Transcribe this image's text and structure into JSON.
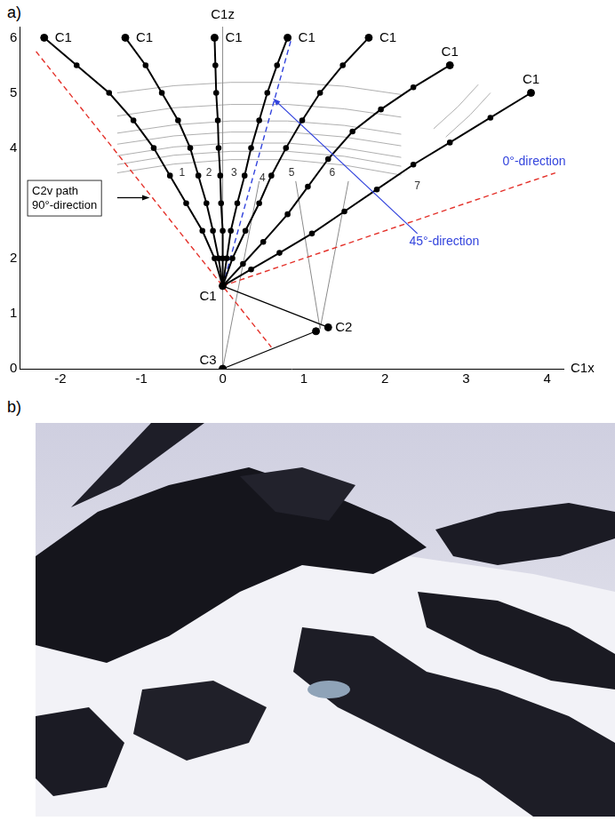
{
  "panel_labels": [
    "a)",
    "b)"
  ],
  "chart_data": {
    "type": "scatter",
    "x_label": "C1x",
    "y_label": "C1z",
    "xlim": [
      -2.5,
      4.2
    ],
    "xticks": [
      -2,
      -1,
      0,
      1,
      2,
      3,
      4
    ],
    "ylim": [
      0,
      6.2
    ],
    "yticks": [
      0,
      1,
      2,
      4,
      5,
      6
    ],
    "grid": false,
    "paths": [
      {
        "label": "1",
        "label_x": -0.5,
        "label_y": 3.55,
        "color": "#000000",
        "marker": "circle",
        "x": [
          0,
          -0.1,
          -0.25,
          -0.45,
          -0.65,
          -0.85,
          -1.1,
          -1.4,
          -1.8,
          -2.2
        ],
        "values": [
          1.5,
          2.0,
          2.5,
          3.0,
          3.5,
          4.0,
          4.5,
          5.0,
          5.5,
          6.0
        ]
      },
      {
        "label": "2",
        "label_x": -0.17,
        "label_y": 3.55,
        "color": "#000000",
        "marker": "circle",
        "x": [
          0,
          -0.05,
          -0.12,
          -0.2,
          -0.3,
          -0.4,
          -0.55,
          -0.75,
          -0.95,
          -1.2
        ],
        "values": [
          1.5,
          2.0,
          2.5,
          3.0,
          3.5,
          4.0,
          4.5,
          5.0,
          5.5,
          6.0
        ]
      },
      {
        "label": "3",
        "label_x": 0.14,
        "label_y": 3.55,
        "color": "#000000",
        "marker": "circle",
        "x": [
          0,
          0,
          0,
          -0.02,
          -0.03,
          -0.05,
          -0.06,
          -0.08,
          -0.09,
          -0.1
        ],
        "values": [
          1.5,
          2.0,
          2.5,
          3.0,
          3.5,
          4.0,
          4.5,
          5.0,
          5.5,
          6.0
        ]
      },
      {
        "label": "4",
        "label_x": 0.49,
        "label_y": 3.45,
        "color": "#000000",
        "marker": "circle",
        "x": [
          0,
          0.05,
          0.1,
          0.18,
          0.27,
          0.35,
          0.45,
          0.55,
          0.67,
          0.8
        ],
        "values": [
          1.5,
          2.0,
          2.5,
          3.0,
          3.5,
          4.0,
          4.5,
          5.0,
          5.5,
          6.0
        ]
      },
      {
        "label": "5",
        "label_x": 0.85,
        "label_y": 3.55,
        "color": "#000000",
        "marker": "circle",
        "x": [
          0,
          0.12,
          0.28,
          0.45,
          0.6,
          0.78,
          0.98,
          1.2,
          1.48,
          1.8
        ],
        "values": [
          1.5,
          2.0,
          2.5,
          3.0,
          3.5,
          4.0,
          4.5,
          5.0,
          5.5,
          6.0
        ]
      },
      {
        "label": "6",
        "label_x": 1.35,
        "label_y": 3.55,
        "color": "#000000",
        "marker": "circle",
        "x": [
          0,
          0.25,
          0.5,
          0.8,
          1.05,
          1.3,
          1.6,
          1.95,
          2.35,
          2.8
        ],
        "values": [
          1.5,
          1.9,
          2.3,
          2.8,
          3.3,
          3.8,
          4.3,
          4.7,
          5.1,
          5.5
        ]
      },
      {
        "label": "7",
        "label_x": 2.4,
        "label_y": 3.3,
        "color": "#000000",
        "marker": "circle",
        "x": [
          0,
          0.35,
          0.7,
          1.1,
          1.5,
          1.9,
          2.35,
          2.8,
          3.3,
          3.8
        ],
        "values": [
          1.5,
          1.8,
          2.1,
          2.45,
          2.85,
          3.25,
          3.7,
          4.1,
          4.55,
          5.0
        ]
      }
    ],
    "points": [
      {
        "text": "C1",
        "x": -2.2,
        "y": 6.0
      },
      {
        "text": "C1",
        "x": -1.2,
        "y": 6.0
      },
      {
        "text": "C1",
        "x": -0.1,
        "y": 6.0
      },
      {
        "text": "C1",
        "x": 0.8,
        "y": 6.0
      },
      {
        "text": "C1",
        "x": 1.8,
        "y": 6.0
      },
      {
        "text": "C1",
        "x": 2.8,
        "y": 5.5
      },
      {
        "text": "C1",
        "x": 3.8,
        "y": 5.0
      },
      {
        "text": "C1",
        "x": 0,
        "y": 1.5
      },
      {
        "text": "C2",
        "x": 1.3,
        "y": 0.75
      },
      {
        "text": "C3",
        "x": 0,
        "y": 0
      }
    ],
    "dots": [
      {
        "x": 1.15,
        "y": 0.68
      }
    ],
    "lines": {
      "color": "#000000",
      "items": [
        {
          "x": [
            0,
            1.3
          ],
          "values": [
            1.5,
            0.75
          ]
        },
        {
          "x": [
            1.15,
            0
          ],
          "values": [
            0.68,
            0
          ]
        }
      ]
    },
    "guide_lines": {
      "color": "#8a8a8a",
      "items": [
        {
          "x": [
            0,
            0
          ],
          "values": [
            0,
            6.2
          ]
        },
        {
          "x": [
            0,
            0.45
          ],
          "values": [
            0,
            3.4
          ]
        },
        {
          "x": [
            1.2,
            0.9
          ],
          "values": [
            0.72,
            3.4
          ]
        },
        {
          "x": [
            1.2,
            1.55
          ],
          "values": [
            0.72,
            3.4
          ]
        }
      ]
    },
    "contours": {
      "color": "#9a9a9a",
      "items": [
        {
          "x": [
            -1.3,
            -0.6,
            0.1,
            0.8,
            1.5,
            2.2
          ],
          "values": [
            3.55,
            3.71,
            3.79,
            3.79,
            3.69,
            3.51
          ]
        },
        {
          "x": [
            -1.3,
            -0.6,
            0.1,
            0.8,
            1.5,
            2.2
          ],
          "values": [
            3.7,
            3.87,
            3.94,
            3.94,
            3.85,
            3.67
          ]
        },
        {
          "x": [
            -1.3,
            -0.6,
            0.1,
            0.8,
            1.5,
            2.2
          ],
          "values": [
            3.86,
            4.02,
            4.09,
            4.09,
            4.0,
            3.83
          ]
        },
        {
          "x": [
            -1.3,
            -0.6,
            0.1,
            0.8,
            1.5,
            2.2
          ],
          "values": [
            4.07,
            4.22,
            4.29,
            4.29,
            4.2,
            4.04
          ]
        },
        {
          "x": [
            -1.3,
            -0.6,
            0.1,
            0.8,
            1.5,
            2.2
          ],
          "values": [
            4.27,
            4.42,
            4.49,
            4.49,
            4.41,
            4.25
          ]
        },
        {
          "x": [
            -1.3,
            -0.6,
            0.1,
            0.8,
            1.5,
            2.2
          ],
          "values": [
            4.58,
            4.73,
            4.79,
            4.79,
            4.71,
            4.56
          ]
        },
        {
          "x": [
            -1.3,
            -0.6,
            0.1,
            0.8,
            1.5,
            2.2
          ],
          "values": [
            5.0,
            5.13,
            5.19,
            5.19,
            5.12,
            4.97
          ]
        },
        {
          "x": [
            2.6,
            2.9,
            3.15
          ],
          "values": [
            4.35,
            4.75,
            5.15
          ]
        },
        {
          "x": [
            2.75,
            3.05,
            3.3
          ],
          "values": [
            4.2,
            4.6,
            5.0
          ]
        }
      ]
    },
    "reference_lines": [
      {
        "color": "#e4322b",
        "line_style": "dashed",
        "x": [
          -2.3,
          0.6
        ],
        "values": [
          5.75,
          0.39
        ]
      },
      {
        "color": "#e4322b",
        "line_style": "dashed",
        "x": [
          0,
          4.1
        ],
        "values": [
          1.5,
          3.55
        ]
      },
      {
        "color": "#3344dd",
        "line_style": "dashed",
        "x": [
          0,
          0.85
        ],
        "values": [
          1.5,
          6.0
        ]
      }
    ],
    "annotations": [
      {
        "lines": [
          "C2v path",
          "90°-direction"
        ],
        "x": -2.35,
        "y": 3.22,
        "color": "#000000"
      },
      {
        "text": "0°-direction",
        "x": 3.45,
        "y": 3.75,
        "color": "#3344dd"
      },
      {
        "text": "45°-direction",
        "x": 2.3,
        "y": 2.3,
        "color": "#3344dd"
      }
    ],
    "arrows": [
      {
        "color": "#000000",
        "x": [
          -1.3,
          -0.9
        ],
        "values": [
          3.1,
          3.1
        ]
      },
      {
        "color": "#3344dd",
        "x": [
          2.4,
          0.62
        ],
        "values": [
          2.45,
          4.9
        ]
      }
    ]
  }
}
